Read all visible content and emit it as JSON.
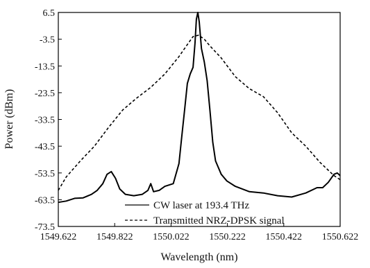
{
  "chart_data": {
    "type": "line",
    "title": "",
    "xlabel": "Wavelength (nm)",
    "ylabel": "Power (dBm)",
    "xlim": [
      1549.622,
      1550.622
    ],
    "ylim": [
      -73.5,
      6.5
    ],
    "x_ticks": [
      "1549.622",
      "1549.822",
      "1550.022",
      "1550.222",
      "1550.422",
      "1550.622"
    ],
    "y_ticks": [
      "6.5",
      "-3.5",
      "-13.5",
      "-23.5",
      "-33.5",
      "-43.5",
      "-53.5",
      "-63.5",
      "-73.5"
    ],
    "grid": false,
    "legend_position": "bottom-right",
    "series": [
      {
        "name": "CW laser at 193.4 THz",
        "style": "solid",
        "color": "#000000",
        "x": [
          1549.622,
          1549.65,
          1549.68,
          1549.71,
          1549.74,
          1549.76,
          1549.78,
          1549.795,
          1549.81,
          1549.825,
          1549.84,
          1549.86,
          1549.89,
          1549.92,
          1549.94,
          1549.95,
          1549.96,
          1549.98,
          1550.0,
          1550.03,
          1550.05,
          1550.06,
          1550.07,
          1550.08,
          1550.09,
          1550.1,
          1550.107,
          1550.112,
          1550.117,
          1550.122,
          1550.13,
          1550.14,
          1550.15,
          1550.16,
          1550.17,
          1550.18,
          1550.2,
          1550.22,
          1550.25,
          1550.3,
          1550.35,
          1550.4,
          1550.45,
          1550.5,
          1550.54,
          1550.56,
          1550.58,
          1550.6,
          1550.612,
          1550.622
        ],
        "values": [
          -64.5,
          -64.0,
          -63.0,
          -62.8,
          -61.5,
          -60.0,
          -57.5,
          -54.0,
          -53.0,
          -55.5,
          -59.5,
          -61.5,
          -62.0,
          -61.5,
          -60.0,
          -57.5,
          -60.5,
          -60.0,
          -58.5,
          -57.5,
          -50.0,
          -40.0,
          -30.0,
          -20.0,
          -16.5,
          -14.0,
          -5.0,
          4.0,
          6.5,
          3.0,
          -7.0,
          -12.0,
          -19.0,
          -30.0,
          -42.0,
          -49.0,
          -54.0,
          -56.5,
          -58.5,
          -60.5,
          -61.0,
          -62.0,
          -62.5,
          -61.0,
          -59.0,
          -59.0,
          -57.0,
          -54.0,
          -53.5,
          -54.5
        ]
      },
      {
        "name": "Transmitted NRZ-DPSK signal",
        "style": "dashed",
        "color": "#000000",
        "x": [
          1549.622,
          1549.65,
          1549.7,
          1549.75,
          1549.8,
          1549.85,
          1549.9,
          1549.95,
          1550.0,
          1550.05,
          1550.08,
          1550.1,
          1550.12,
          1550.14,
          1550.16,
          1550.2,
          1550.25,
          1550.3,
          1550.35,
          1550.4,
          1550.45,
          1550.5,
          1550.55,
          1550.6,
          1550.622
        ],
        "values": [
          -60.0,
          -55.0,
          -49.0,
          -43.5,
          -36.5,
          -30.0,
          -25.5,
          -21.5,
          -16.5,
          -10.0,
          -5.5,
          -2.5,
          -2.0,
          -3.5,
          -6.0,
          -10.5,
          -17.5,
          -22.0,
          -25.0,
          -31.0,
          -38.5,
          -43.5,
          -49.5,
          -54.5,
          -56.0
        ]
      }
    ]
  }
}
